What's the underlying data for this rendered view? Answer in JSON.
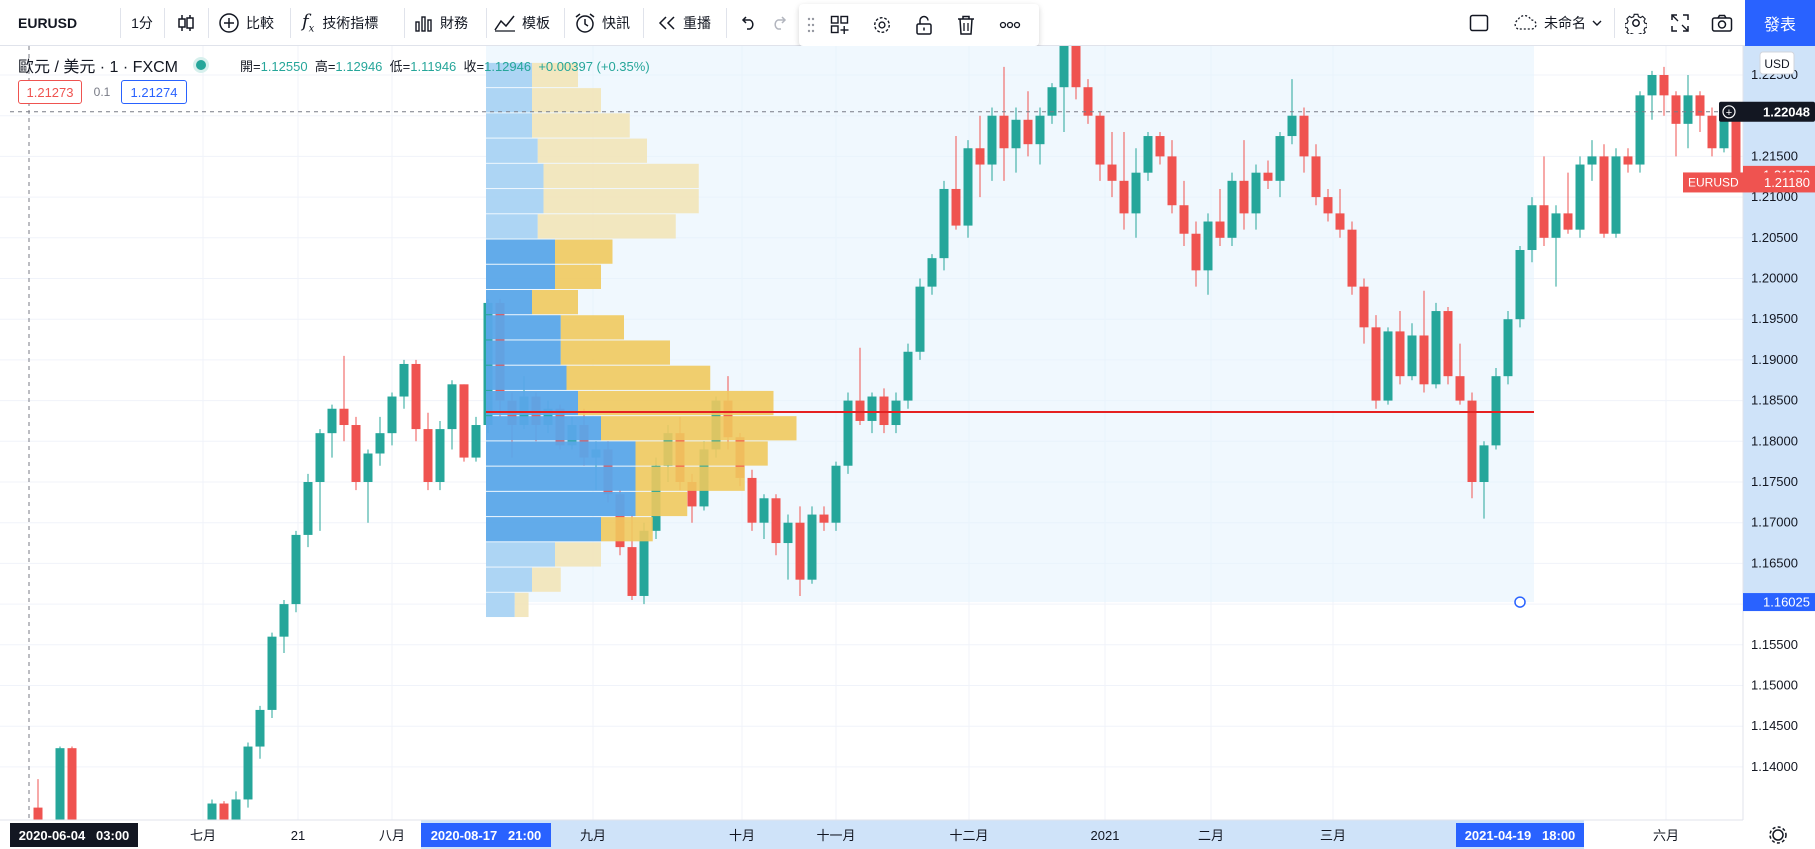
{
  "toolbar": {
    "symbol": "EURUSD",
    "interval": "1分",
    "compare_label": "比較",
    "indicators_label": "技術指標",
    "financials_label": "財務",
    "templates_label": "模板",
    "alert_label": "快訊",
    "replay_label": "重播",
    "layout_name": "未命名",
    "publish_label": "發表"
  },
  "legend": {
    "title": "歐元 / 美元 · 1 · FXCM",
    "open_label": "開=",
    "open": "1.12550",
    "high_label": "高=",
    "high": "1.12946",
    "low_label": "低=",
    "low": "1.11946",
    "close_label": "收=",
    "close": "1.12946",
    "change": "+0.00397 (+0.35%)",
    "bid": "1.21273",
    "spread": "0.1",
    "ask": "1.21274"
  },
  "price_axis": {
    "currency": "USD",
    "ticks": [
      "1.22500",
      "1.22000",
      "1.21500",
      "1.21000",
      "1.20500",
      "1.20000",
      "1.19500",
      "1.19000",
      "1.18500",
      "1.18000",
      "1.17500",
      "1.17000",
      "1.16500",
      "1.16000",
      "1.15500",
      "1.15000",
      "1.14500",
      "1.14000"
    ],
    "crosshair_label": "1.22048",
    "bid_label": "1.21273",
    "symbol_label": "EURUSD",
    "last_label": "1.21180",
    "range_low_label": "1.16025"
  },
  "time_axis": {
    "ticks": [
      "七月",
      "21",
      "八月",
      "九月",
      "十月",
      "十一月",
      "十二月",
      "2021",
      "二月",
      "三月",
      "六月"
    ],
    "crosshair_label": "2020-06-04   03:00",
    "range_start_label": "2020-08-17   21:00",
    "range_end_label": "2021-04-19   18:00"
  },
  "colors": {
    "up": "#26a69a",
    "down": "#ef5350",
    "accent": "#2962ff",
    "vp_up": "#5aa7e9",
    "vp_down": "#f0c95e",
    "poc": "#e52121"
  },
  "chart_data": {
    "type": "candlestick",
    "symbol": "EURUSD",
    "y_range": [
      1.1355,
      1.2305
    ],
    "poc_price": 1.1836,
    "range_box": {
      "start": "2020-08-17 21:00",
      "end": "2021-04-19 18:00",
      "low": 1.16025
    },
    "candles": [
      {
        "x": 38,
        "o": 1.135,
        "h": 1.1385,
        "l": 1.13,
        "c": 1.133
      },
      {
        "x": 60,
        "o": 1.133,
        "h": 1.1425,
        "l": 1.132,
        "c": 1.1423
      },
      {
        "x": 72,
        "o": 1.1423,
        "h": 1.1425,
        "l": 1.133,
        "c": 1.1335
      },
      {
        "x": 212,
        "o": 1.13,
        "h": 1.136,
        "l": 1.129,
        "c": 1.1355
      },
      {
        "x": 224,
        "o": 1.1355,
        "h": 1.1358,
        "l": 1.131,
        "c": 1.132
      },
      {
        "x": 236,
        "o": 1.132,
        "h": 1.137,
        "l": 1.13,
        "c": 1.136
      },
      {
        "x": 248,
        "o": 1.136,
        "h": 1.143,
        "l": 1.135,
        "c": 1.1425
      },
      {
        "x": 260,
        "o": 1.1425,
        "h": 1.1475,
        "l": 1.141,
        "c": 1.147
      },
      {
        "x": 272,
        "o": 1.147,
        "h": 1.1565,
        "l": 1.146,
        "c": 1.156
      },
      {
        "x": 284,
        "o": 1.156,
        "h": 1.1605,
        "l": 1.154,
        "c": 1.16
      },
      {
        "x": 296,
        "o": 1.16,
        "h": 1.169,
        "l": 1.159,
        "c": 1.1685
      },
      {
        "x": 308,
        "o": 1.1685,
        "h": 1.176,
        "l": 1.167,
        "c": 1.175
      },
      {
        "x": 320,
        "o": 1.175,
        "h": 1.1815,
        "l": 1.169,
        "c": 1.181
      },
      {
        "x": 332,
        "o": 1.181,
        "h": 1.1845,
        "l": 1.178,
        "c": 1.184
      },
      {
        "x": 344,
        "o": 1.184,
        "h": 1.1905,
        "l": 1.18,
        "c": 1.182
      },
      {
        "x": 356,
        "o": 1.182,
        "h": 1.183,
        "l": 1.174,
        "c": 1.175
      },
      {
        "x": 368,
        "o": 1.175,
        "h": 1.179,
        "l": 1.17,
        "c": 1.1785
      },
      {
        "x": 380,
        "o": 1.1785,
        "h": 1.183,
        "l": 1.177,
        "c": 1.181
      },
      {
        "x": 392,
        "o": 1.181,
        "h": 1.186,
        "l": 1.1795,
        "c": 1.1855
      },
      {
        "x": 404,
        "o": 1.1855,
        "h": 1.19,
        "l": 1.184,
        "c": 1.1895
      },
      {
        "x": 416,
        "o": 1.1895,
        "h": 1.19,
        "l": 1.18,
        "c": 1.1815
      },
      {
        "x": 428,
        "o": 1.1815,
        "h": 1.1835,
        "l": 1.174,
        "c": 1.175
      },
      {
        "x": 440,
        "o": 1.175,
        "h": 1.1825,
        "l": 1.174,
        "c": 1.1815
      },
      {
        "x": 452,
        "o": 1.1815,
        "h": 1.1875,
        "l": 1.179,
        "c": 1.187
      },
      {
        "x": 464,
        "o": 1.187,
        "h": 1.187,
        "l": 1.1775,
        "c": 1.178
      },
      {
        "x": 476,
        "o": 1.178,
        "h": 1.183,
        "l": 1.1775,
        "c": 1.182
      },
      {
        "x": 488,
        "o": 1.182,
        "h": 1.1975,
        "l": 1.181,
        "c": 1.197
      },
      {
        "x": 500,
        "o": 1.197,
        "h": 1.1975,
        "l": 1.183,
        "c": 1.185
      },
      {
        "x": 512,
        "o": 1.185,
        "h": 1.186,
        "l": 1.178,
        "c": 1.182
      },
      {
        "x": 524,
        "o": 1.182,
        "h": 1.188,
        "l": 1.1815,
        "c": 1.1855
      },
      {
        "x": 536,
        "o": 1.1855,
        "h": 1.186,
        "l": 1.18,
        "c": 1.182
      },
      {
        "x": 548,
        "o": 1.182,
        "h": 1.185,
        "l": 1.181,
        "c": 1.184
      },
      {
        "x": 560,
        "o": 1.184,
        "h": 1.1845,
        "l": 1.179,
        "c": 1.1795
      },
      {
        "x": 572,
        "o": 1.1795,
        "h": 1.183,
        "l": 1.179,
        "c": 1.182
      },
      {
        "x": 584,
        "o": 1.182,
        "h": 1.184,
        "l": 1.177,
        "c": 1.178
      },
      {
        "x": 596,
        "o": 1.178,
        "h": 1.18,
        "l": 1.174,
        "c": 1.179
      },
      {
        "x": 608,
        "o": 1.179,
        "h": 1.18,
        "l": 1.1725,
        "c": 1.1735
      },
      {
        "x": 620,
        "o": 1.1735,
        "h": 1.174,
        "l": 1.166,
        "c": 1.167
      },
      {
        "x": 632,
        "o": 1.167,
        "h": 1.171,
        "l": 1.1605,
        "c": 1.161
      },
      {
        "x": 644,
        "o": 1.161,
        "h": 1.17,
        "l": 1.16,
        "c": 1.169
      },
      {
        "x": 656,
        "o": 1.169,
        "h": 1.178,
        "l": 1.168,
        "c": 1.177
      },
      {
        "x": 668,
        "o": 1.177,
        "h": 1.182,
        "l": 1.175,
        "c": 1.181
      },
      {
        "x": 680,
        "o": 1.181,
        "h": 1.183,
        "l": 1.174,
        "c": 1.175
      },
      {
        "x": 692,
        "o": 1.175,
        "h": 1.176,
        "l": 1.17,
        "c": 1.172
      },
      {
        "x": 704,
        "o": 1.172,
        "h": 1.18,
        "l": 1.1715,
        "c": 1.179
      },
      {
        "x": 716,
        "o": 1.179,
        "h": 1.1855,
        "l": 1.178,
        "c": 1.185
      },
      {
        "x": 728,
        "o": 1.185,
        "h": 1.188,
        "l": 1.179,
        "c": 1.1805
      },
      {
        "x": 740,
        "o": 1.1805,
        "h": 1.181,
        "l": 1.1745,
        "c": 1.1755
      },
      {
        "x": 752,
        "o": 1.1755,
        "h": 1.1765,
        "l": 1.169,
        "c": 1.17
      },
      {
        "x": 764,
        "o": 1.17,
        "h": 1.1735,
        "l": 1.168,
        "c": 1.173
      },
      {
        "x": 776,
        "o": 1.173,
        "h": 1.1735,
        "l": 1.166,
        "c": 1.1675
      },
      {
        "x": 788,
        "o": 1.1675,
        "h": 1.171,
        "l": 1.163,
        "c": 1.17
      },
      {
        "x": 800,
        "o": 1.17,
        "h": 1.172,
        "l": 1.161,
        "c": 1.163
      },
      {
        "x": 812,
        "o": 1.163,
        "h": 1.172,
        "l": 1.1625,
        "c": 1.171
      },
      {
        "x": 824,
        "o": 1.171,
        "h": 1.172,
        "l": 1.169,
        "c": 1.17
      },
      {
        "x": 836,
        "o": 1.17,
        "h": 1.1775,
        "l": 1.169,
        "c": 1.177
      },
      {
        "x": 848,
        "o": 1.177,
        "h": 1.186,
        "l": 1.176,
        "c": 1.185
      },
      {
        "x": 860,
        "o": 1.185,
        "h": 1.1915,
        "l": 1.182,
        "c": 1.1825
      },
      {
        "x": 872,
        "o": 1.1825,
        "h": 1.186,
        "l": 1.181,
        "c": 1.1855
      },
      {
        "x": 884,
        "o": 1.1855,
        "h": 1.1865,
        "l": 1.181,
        "c": 1.182
      },
      {
        "x": 896,
        "o": 1.182,
        "h": 1.186,
        "l": 1.181,
        "c": 1.185
      },
      {
        "x": 908,
        "o": 1.185,
        "h": 1.192,
        "l": 1.184,
        "c": 1.191
      },
      {
        "x": 920,
        "o": 1.191,
        "h": 1.2,
        "l": 1.19,
        "c": 1.199
      },
      {
        "x": 932,
        "o": 1.199,
        "h": 1.203,
        "l": 1.198,
        "c": 1.2025
      },
      {
        "x": 944,
        "o": 1.2025,
        "h": 1.212,
        "l": 1.201,
        "c": 1.211
      },
      {
        "x": 956,
        "o": 1.211,
        "h": 1.2175,
        "l": 1.206,
        "c": 1.2065
      },
      {
        "x": 968,
        "o": 1.2065,
        "h": 1.217,
        "l": 1.205,
        "c": 1.216
      },
      {
        "x": 980,
        "o": 1.216,
        "h": 1.22,
        "l": 1.21,
        "c": 1.214
      },
      {
        "x": 992,
        "o": 1.214,
        "h": 1.221,
        "l": 1.212,
        "c": 1.22
      },
      {
        "x": 1004,
        "o": 1.22,
        "h": 1.226,
        "l": 1.212,
        "c": 1.216
      },
      {
        "x": 1016,
        "o": 1.216,
        "h": 1.221,
        "l": 1.213,
        "c": 1.2195
      },
      {
        "x": 1028,
        "o": 1.2195,
        "h": 1.223,
        "l": 1.215,
        "c": 1.2165
      },
      {
        "x": 1040,
        "o": 1.2165,
        "h": 1.221,
        "l": 1.214,
        "c": 1.22
      },
      {
        "x": 1052,
        "o": 1.22,
        "h": 1.224,
        "l": 1.219,
        "c": 1.2235
      },
      {
        "x": 1064,
        "o": 1.2235,
        "h": 1.231,
        "l": 1.218,
        "c": 1.229
      },
      {
        "x": 1076,
        "o": 1.229,
        "h": 1.231,
        "l": 1.222,
        "c": 1.2235
      },
      {
        "x": 1088,
        "o": 1.2235,
        "h": 1.2245,
        "l": 1.219,
        "c": 1.22
      },
      {
        "x": 1100,
        "o": 1.22,
        "h": 1.2205,
        "l": 1.212,
        "c": 1.214
      },
      {
        "x": 1112,
        "o": 1.214,
        "h": 1.218,
        "l": 1.21,
        "c": 1.212
      },
      {
        "x": 1124,
        "o": 1.212,
        "h": 1.218,
        "l": 1.206,
        "c": 1.208
      },
      {
        "x": 1136,
        "o": 1.208,
        "h": 1.216,
        "l": 1.205,
        "c": 1.213
      },
      {
        "x": 1148,
        "o": 1.213,
        "h": 1.218,
        "l": 1.212,
        "c": 1.2175
      },
      {
        "x": 1160,
        "o": 1.2175,
        "h": 1.218,
        "l": 1.214,
        "c": 1.215
      },
      {
        "x": 1172,
        "o": 1.215,
        "h": 1.217,
        "l": 1.208,
        "c": 1.209
      },
      {
        "x": 1184,
        "o": 1.209,
        "h": 1.212,
        "l": 1.204,
        "c": 1.2055
      },
      {
        "x": 1196,
        "o": 1.2055,
        "h": 1.207,
        "l": 1.199,
        "c": 1.201
      },
      {
        "x": 1208,
        "o": 1.201,
        "h": 1.208,
        "l": 1.198,
        "c": 1.207
      },
      {
        "x": 1220,
        "o": 1.207,
        "h": 1.211,
        "l": 1.204,
        "c": 1.205
      },
      {
        "x": 1232,
        "o": 1.205,
        "h": 1.213,
        "l": 1.204,
        "c": 1.212
      },
      {
        "x": 1244,
        "o": 1.212,
        "h": 1.217,
        "l": 1.206,
        "c": 1.208
      },
      {
        "x": 1256,
        "o": 1.208,
        "h": 1.214,
        "l": 1.206,
        "c": 1.213
      },
      {
        "x": 1268,
        "o": 1.213,
        "h": 1.2145,
        "l": 1.211,
        "c": 1.212
      },
      {
        "x": 1280,
        "o": 1.212,
        "h": 1.218,
        "l": 1.21,
        "c": 1.2175
      },
      {
        "x": 1292,
        "o": 1.2175,
        "h": 1.2245,
        "l": 1.2165,
        "c": 1.22
      },
      {
        "x": 1304,
        "o": 1.22,
        "h": 1.221,
        "l": 1.213,
        "c": 1.215
      },
      {
        "x": 1316,
        "o": 1.215,
        "h": 1.2165,
        "l": 1.209,
        "c": 1.21
      },
      {
        "x": 1328,
        "o": 1.21,
        "h": 1.211,
        "l": 1.207,
        "c": 1.208
      },
      {
        "x": 1340,
        "o": 1.208,
        "h": 1.211,
        "l": 1.205,
        "c": 1.206
      },
      {
        "x": 1352,
        "o": 1.206,
        "h": 1.207,
        "l": 1.198,
        "c": 1.199
      },
      {
        "x": 1364,
        "o": 1.199,
        "h": 1.2,
        "l": 1.192,
        "c": 1.194
      },
      {
        "x": 1376,
        "o": 1.194,
        "h": 1.1955,
        "l": 1.184,
        "c": 1.185
      },
      {
        "x": 1388,
        "o": 1.185,
        "h": 1.194,
        "l": 1.1845,
        "c": 1.1935
      },
      {
        "x": 1400,
        "o": 1.1935,
        "h": 1.196,
        "l": 1.187,
        "c": 1.188
      },
      {
        "x": 1412,
        "o": 1.188,
        "h": 1.1945,
        "l": 1.1875,
        "c": 1.193
      },
      {
        "x": 1424,
        "o": 1.193,
        "h": 1.1985,
        "l": 1.186,
        "c": 1.187
      },
      {
        "x": 1436,
        "o": 1.187,
        "h": 1.197,
        "l": 1.1865,
        "c": 1.196
      },
      {
        "x": 1448,
        "o": 1.196,
        "h": 1.1965,
        "l": 1.187,
        "c": 1.188
      },
      {
        "x": 1460,
        "o": 1.188,
        "h": 1.192,
        "l": 1.1845,
        "c": 1.185
      },
      {
        "x": 1472,
        "o": 1.185,
        "h": 1.186,
        "l": 1.173,
        "c": 1.175
      },
      {
        "x": 1484,
        "o": 1.175,
        "h": 1.18,
        "l": 1.1705,
        "c": 1.1795
      },
      {
        "x": 1496,
        "o": 1.1795,
        "h": 1.189,
        "l": 1.179,
        "c": 1.188
      },
      {
        "x": 1508,
        "o": 1.188,
        "h": 1.196,
        "l": 1.187,
        "c": 1.195
      },
      {
        "x": 1520,
        "o": 1.195,
        "h": 1.204,
        "l": 1.194,
        "c": 1.2035
      },
      {
        "x": 1532,
        "o": 1.2035,
        "h": 1.21,
        "l": 1.202,
        "c": 1.209
      },
      {
        "x": 1544,
        "o": 1.209,
        "h": 1.215,
        "l": 1.204,
        "c": 1.205
      },
      {
        "x": 1556,
        "o": 1.205,
        "h": 1.209,
        "l": 1.199,
        "c": 1.208
      },
      {
        "x": 1568,
        "o": 1.208,
        "h": 1.213,
        "l": 1.2055,
        "c": 1.206
      },
      {
        "x": 1580,
        "o": 1.206,
        "h": 1.215,
        "l": 1.205,
        "c": 1.214
      },
      {
        "x": 1592,
        "o": 1.214,
        "h": 1.217,
        "l": 1.212,
        "c": 1.215
      },
      {
        "x": 1604,
        "o": 1.215,
        "h": 1.2165,
        "l": 1.205,
        "c": 1.2055
      },
      {
        "x": 1616,
        "o": 1.2055,
        "h": 1.216,
        "l": 1.205,
        "c": 1.215
      },
      {
        "x": 1628,
        "o": 1.215,
        "h": 1.216,
        "l": 1.213,
        "c": 1.214
      },
      {
        "x": 1640,
        "o": 1.214,
        "h": 1.223,
        "l": 1.213,
        "c": 1.2225
      },
      {
        "x": 1652,
        "o": 1.2225,
        "h": 1.2255,
        "l": 1.2195,
        "c": 1.225
      },
      {
        "x": 1664,
        "o": 1.225,
        "h": 1.226,
        "l": 1.22,
        "c": 1.2225
      },
      {
        "x": 1676,
        "o": 1.2225,
        "h": 1.223,
        "l": 1.215,
        "c": 1.219
      },
      {
        "x": 1688,
        "o": 1.219,
        "h": 1.225,
        "l": 1.216,
        "c": 1.2225
      },
      {
        "x": 1700,
        "o": 1.2225,
        "h": 1.223,
        "l": 1.218,
        "c": 1.22
      },
      {
        "x": 1712,
        "o": 1.22,
        "h": 1.221,
        "l": 1.215,
        "c": 1.216
      },
      {
        "x": 1724,
        "o": 1.216,
        "h": 1.2215,
        "l": 1.2155,
        "c": 1.221
      },
      {
        "x": 1736,
        "o": 1.221,
        "h": 1.2215,
        "l": 1.211,
        "c": 1.2118
      }
    ],
    "volume_profile": [
      {
        "price": 1.225,
        "up": 0.04,
        "down": 0.04
      },
      {
        "price": 1.2219,
        "up": 0.04,
        "down": 0.06
      },
      {
        "price": 1.2188,
        "up": 0.04,
        "down": 0.085
      },
      {
        "price": 1.2157,
        "up": 0.045,
        "down": 0.095
      },
      {
        "price": 1.2126,
        "up": 0.05,
        "down": 0.135
      },
      {
        "price": 1.2095,
        "up": 0.05,
        "down": 0.135
      },
      {
        "price": 1.2064,
        "up": 0.045,
        "down": 0.12
      },
      {
        "price": 1.2033,
        "up": 0.06,
        "down": 0.05
      },
      {
        "price": 1.2002,
        "up": 0.06,
        "down": 0.04
      },
      {
        "price": 1.1971,
        "up": 0.04,
        "down": 0.04
      },
      {
        "price": 1.194,
        "up": 0.065,
        "down": 0.055
      },
      {
        "price": 1.1909,
        "up": 0.065,
        "down": 0.095
      },
      {
        "price": 1.1878,
        "up": 0.07,
        "down": 0.125
      },
      {
        "price": 1.1847,
        "up": 0.08,
        "down": 0.17
      },
      {
        "price": 1.1816,
        "up": 0.1,
        "down": 0.17
      },
      {
        "price": 1.1785,
        "up": 0.13,
        "down": 0.115
      },
      {
        "price": 1.1754,
        "up": 0.13,
        "down": 0.095
      },
      {
        "price": 1.1723,
        "up": 0.13,
        "down": 0.045
      },
      {
        "price": 1.1692,
        "up": 0.1,
        "down": 0.045
      },
      {
        "price": 1.1661,
        "up": 0.06,
        "down": 0.04
      },
      {
        "price": 1.163,
        "up": 0.04,
        "down": 0.025
      },
      {
        "price": 1.1599,
        "up": 0.025,
        "down": 0.012
      }
    ]
  }
}
